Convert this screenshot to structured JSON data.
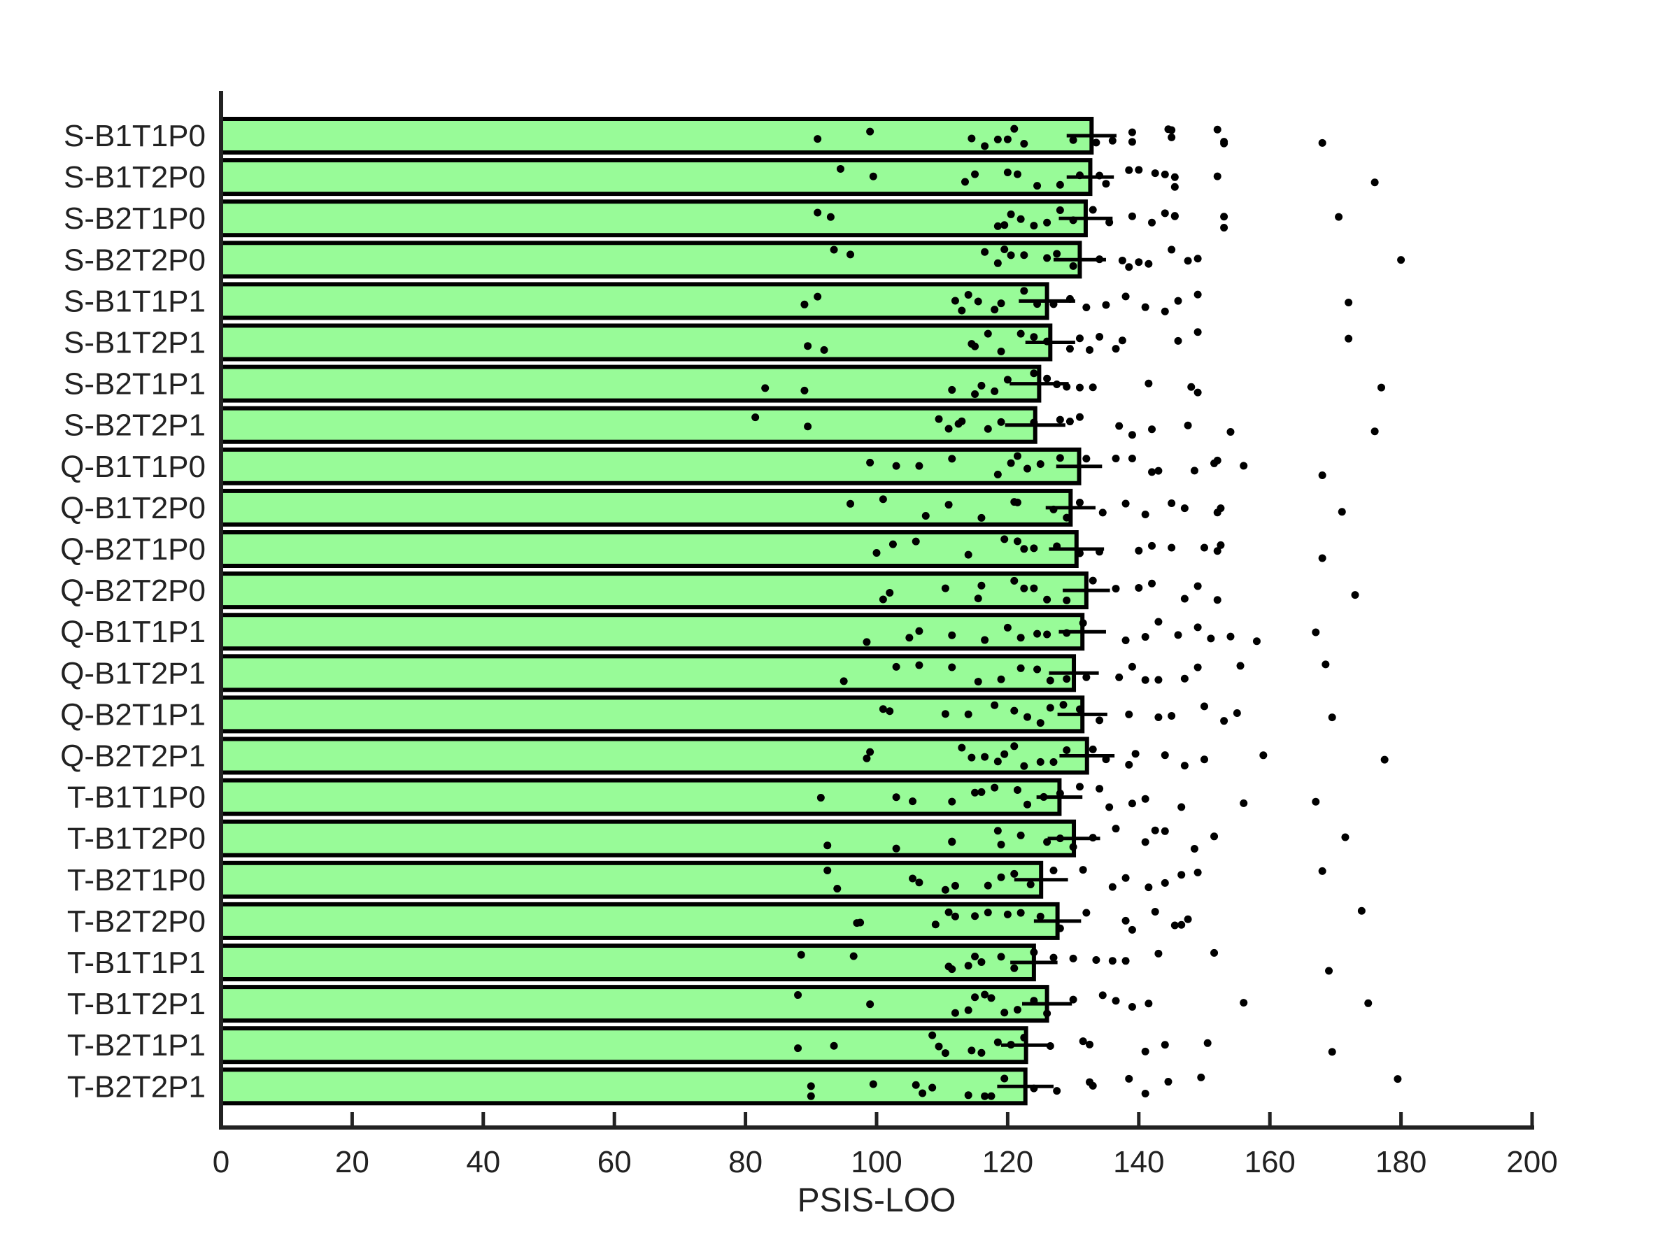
{
  "chart_data": {
    "type": "bar",
    "orientation": "horizontal",
    "title": "",
    "xlabel": "PSIS-LOO",
    "ylabel": "",
    "xlim": [
      0,
      200
    ],
    "xticks": [
      0,
      20,
      40,
      60,
      80,
      100,
      120,
      140,
      160,
      180,
      200
    ],
    "grid": false,
    "colors": {
      "bar_fill": "#98fb98",
      "bar_edge": "#000000",
      "point": "#000000",
      "error": "#000000",
      "axis": "#222222"
    },
    "categories": [
      "S-B1T1P0",
      "S-B1T2P0",
      "S-B2T1P0",
      "S-B2T2P0",
      "S-B1T1P1",
      "S-B1T2P1",
      "S-B2T1P1",
      "S-B2T2P1",
      "Q-B1T1P0",
      "Q-B1T2P0",
      "Q-B2T1P0",
      "Q-B2T2P0",
      "Q-B1T1P1",
      "Q-B1T2P1",
      "Q-B2T1P1",
      "Q-B2T2P1",
      "T-B1T1P0",
      "T-B1T2P0",
      "T-B2T1P0",
      "T-B2T2P0",
      "T-B1T1P1",
      "T-B1T2P1",
      "T-B2T1P1",
      "T-B2T2P1"
    ],
    "values": [
      132.8,
      132.6,
      131.9,
      131.0,
      126.0,
      126.5,
      124.8,
      124.2,
      130.9,
      129.6,
      130.5,
      132.0,
      131.4,
      130.1,
      131.4,
      132.1,
      127.9,
      130.1,
      125.1,
      127.6,
      124.0,
      126.0,
      122.8,
      122.7
    ],
    "errors": [
      3.8,
      3.6,
      4.1,
      4.0,
      4.3,
      3.8,
      4.5,
      4.6,
      3.5,
      3.8,
      4.2,
      3.6,
      3.6,
      3.8,
      3.8,
      4.2,
      3.5,
      4.0,
      4.1,
      3.6,
      3.6,
      3.8,
      3.8,
      4.3
    ],
    "points": [
      [
        91,
        99,
        114.5,
        116.5,
        118.5,
        120,
        121,
        122.5,
        130,
        133.5,
        136,
        139,
        139,
        144.5,
        145,
        145,
        152,
        153,
        153,
        168
      ],
      [
        94.5,
        99.5,
        113.5,
        115,
        120,
        121.5,
        124.5,
        128,
        131,
        134,
        135,
        138.5,
        140,
        142.5,
        144,
        145.5,
        145.5,
        152,
        176
      ],
      [
        91,
        93,
        118.5,
        119.5,
        120.5,
        122,
        124,
        126,
        128,
        130,
        133,
        135.5,
        139,
        142,
        144,
        145.5,
        145.5,
        153,
        153,
        170.5
      ],
      [
        93.5,
        96,
        116.5,
        118.5,
        119.5,
        120.5,
        122.5,
        126,
        127.5,
        130,
        134,
        137.5,
        138.5,
        140,
        141.5,
        145,
        147.5,
        149,
        180
      ],
      [
        89,
        91,
        112,
        113,
        114,
        115.5,
        118,
        119,
        122.5,
        124.5,
        127,
        129.5,
        132,
        135,
        138,
        141,
        144,
        146,
        149,
        172
      ],
      [
        89.5,
        92,
        114.5,
        115,
        117,
        119,
        122,
        124,
        126,
        129.5,
        131,
        132.5,
        134,
        136.5,
        137.5,
        146,
        149,
        172
      ],
      [
        83,
        89,
        111.5,
        115,
        116,
        118,
        120,
        124,
        126,
        127.5,
        129,
        131,
        133,
        141.5,
        148,
        149,
        177
      ],
      [
        81.5,
        89.5,
        109.5,
        111,
        112.5,
        113,
        117,
        119,
        124,
        128,
        129.5,
        131,
        137,
        139,
        142,
        147.5,
        154,
        176
      ],
      [
        99,
        103,
        106.5,
        111.5,
        118.5,
        120.5,
        121.5,
        123,
        125,
        128,
        132,
        136.5,
        139,
        142,
        143,
        148.5,
        151.5,
        152,
        156,
        168
      ],
      [
        96,
        101,
        107.5,
        111,
        116,
        121,
        121.5,
        127,
        129,
        131,
        134.5,
        138,
        141,
        145,
        147,
        152,
        152.5,
        171
      ],
      [
        100,
        102.5,
        106,
        114,
        119.5,
        121.5,
        122.5,
        124,
        127.5,
        131,
        134,
        140,
        142,
        145,
        150,
        152,
        152.5,
        168
      ],
      [
        101,
        102,
        110.5,
        115.5,
        116,
        121,
        122.5,
        124,
        126,
        129,
        133,
        136.5,
        140,
        142,
        147,
        149,
        152,
        173
      ],
      [
        98.5,
        105,
        106.5,
        111.5,
        116.5,
        120,
        122,
        124.5,
        126,
        129,
        131.5,
        138,
        141,
        143,
        146,
        149,
        151,
        154,
        158,
        167
      ],
      [
        95,
        103,
        106.5,
        111.5,
        115.5,
        119,
        122,
        124.5,
        126.5,
        129,
        132,
        137,
        139,
        141,
        143,
        147,
        149,
        155.5,
        168.5
      ],
      [
        101,
        102,
        110.5,
        114,
        118,
        121,
        123,
        125,
        126.5,
        128.5,
        131,
        134,
        138.5,
        143,
        145,
        150,
        153,
        155,
        169.5
      ],
      [
        98.5,
        99,
        113,
        114.5,
        116.5,
        118.5,
        119.5,
        121,
        122.5,
        125,
        127,
        129,
        133,
        135,
        138.5,
        139.5,
        144,
        147,
        150,
        159,
        177.5
      ],
      [
        91.5,
        103,
        105.5,
        111.5,
        115,
        116,
        118,
        121.5,
        123,
        125.5,
        128,
        131,
        134,
        135.5,
        139,
        141,
        146.5,
        156,
        167
      ],
      [
        92.5,
        103,
        111.5,
        111.5,
        118.5,
        119,
        122,
        126,
        128,
        130,
        133,
        136.5,
        141,
        142.5,
        144,
        148.5,
        151.5,
        171.5
      ],
      [
        92.5,
        94,
        105.5,
        106.5,
        110.5,
        112,
        117,
        119,
        121,
        123.5,
        127,
        131.5,
        136,
        138,
        141.5,
        144,
        146.5,
        149,
        168
      ],
      [
        97,
        97.5,
        109,
        111,
        112,
        115,
        117,
        120,
        122,
        125,
        128,
        132,
        138,
        139,
        142.5,
        145.5,
        146.5,
        147.5,
        174
      ],
      [
        88.5,
        96.5,
        111,
        111.5,
        114,
        115,
        116,
        119,
        121,
        124,
        127,
        130,
        133.5,
        136,
        138,
        143,
        151.5,
        169
      ],
      [
        88,
        99,
        112,
        114,
        115,
        116.5,
        117.5,
        119.5,
        121.5,
        124,
        126,
        130,
        134.5,
        136.5,
        139,
        141.5,
        156,
        175
      ],
      [
        88,
        93.5,
        108.5,
        109.5,
        110.5,
        114.5,
        116,
        118.5,
        120.5,
        122.5,
        126.5,
        131.5,
        132.5,
        141,
        144,
        150.5,
        169.5
      ],
      [
        90,
        90,
        99.5,
        106,
        107,
        108.5,
        114,
        116.5,
        117.5,
        119.5,
        124,
        127.5,
        132.5,
        133,
        138.5,
        141,
        144.5,
        149.5,
        179.5
      ]
    ]
  }
}
